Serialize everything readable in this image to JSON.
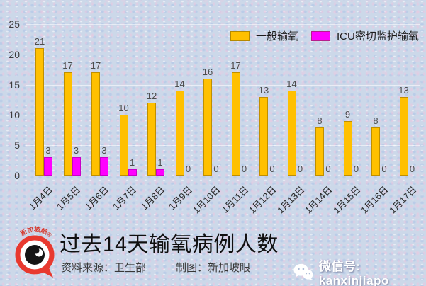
{
  "chart_data": {
    "type": "bar",
    "title": "过去14天输氧病例人数",
    "categories": [
      "1月4日",
      "1月5日",
      "1月6日",
      "1月7日",
      "1月8日",
      "1月9日",
      "1月10日",
      "1月11日",
      "1月12日",
      "1月13日",
      "1月14日",
      "1月15日",
      "1月16日",
      "1月17日"
    ],
    "series": [
      {
        "name": "一般输氧",
        "color": "#FFC000",
        "border": "#BF8F00",
        "values": [
          21,
          17,
          17,
          10,
          12,
          14,
          16,
          17,
          13,
          14,
          8,
          9,
          8,
          13
        ]
      },
      {
        "name": "ICU密切监护输氧",
        "color": "#FF00FF",
        "border": "#C800C8",
        "values": [
          3,
          3,
          3,
          1,
          1,
          0,
          0,
          0,
          0,
          0,
          0,
          0,
          0,
          0
        ]
      }
    ],
    "ylim": [
      0,
      25
    ],
    "yticks": [
      0,
      5,
      10,
      15,
      20,
      25
    ],
    "grid": true,
    "legend_position": "top"
  },
  "footer": {
    "source": "资料来源：卫生部",
    "credit": "制图：新加坡眼"
  },
  "watermark": {
    "wechat_label": "微信号: kanxinjiapo"
  },
  "logo": {
    "arc_text": "新加坡眼®"
  }
}
